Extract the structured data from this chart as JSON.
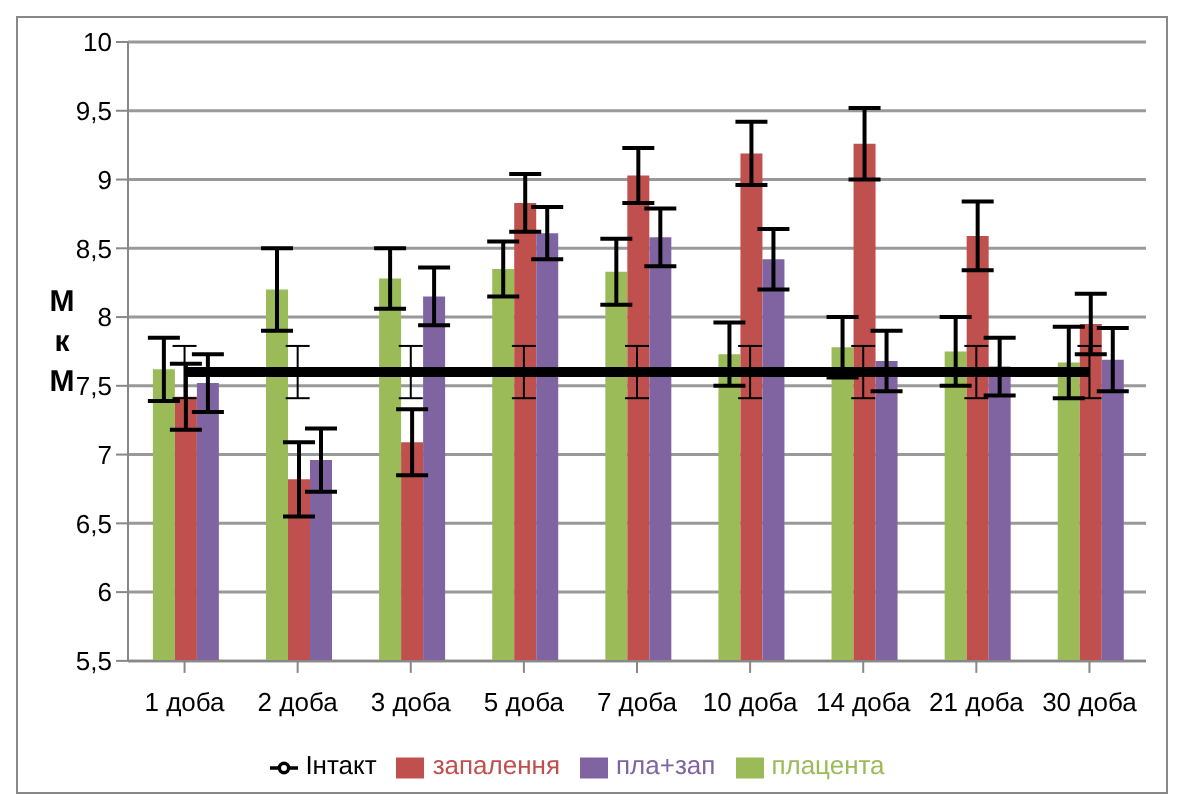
{
  "chart_data": {
    "type": "bar",
    "ylabel": "МкМ",
    "categories": [
      "1 доба",
      "2 доба",
      "3 доба",
      "5 доба",
      "7 доба",
      "10 доба",
      "14 доба",
      "21 доба",
      "30 доба"
    ],
    "series": [
      {
        "name": "плацента",
        "color": "#9bbb59",
        "values": [
          7.62,
          8.2,
          8.28,
          8.35,
          8.33,
          7.73,
          7.78,
          7.75,
          7.67
        ],
        "errors": [
          0.23,
          0.3,
          0.22,
          0.2,
          0.24,
          0.23,
          0.22,
          0.25,
          0.26
        ]
      },
      {
        "name": "запалення",
        "color": "#c0504d",
        "values": [
          7.42,
          6.82,
          7.09,
          8.83,
          9.03,
          9.19,
          9.26,
          8.59,
          7.95
        ],
        "errors": [
          0.24,
          0.27,
          0.24,
          0.21,
          0.2,
          0.23,
          0.26,
          0.25,
          0.22
        ]
      },
      {
        "name": "пла+зап",
        "color": "#8064a2",
        "values": [
          7.52,
          6.96,
          8.15,
          8.61,
          8.58,
          8.42,
          7.68,
          7.64,
          7.69
        ],
        "errors": [
          0.21,
          0.23,
          0.21,
          0.19,
          0.21,
          0.22,
          0.22,
          0.21,
          0.23
        ]
      },
      {
        "name": "Інтакт",
        "type": "line",
        "color": "#000000",
        "marker": "none",
        "values": [
          7.6,
          7.6,
          7.6,
          7.6,
          7.6,
          7.6,
          7.6,
          7.6,
          7.6
        ],
        "errors": [
          0.19,
          0.19,
          0.19,
          0.19,
          0.19,
          0.19,
          0.19,
          0.19,
          0.19
        ]
      }
    ],
    "ylim": [
      5.5,
      10
    ],
    "yticks": [
      {
        "value": 5.5,
        "label": "5,5"
      },
      6,
      {
        "value": 6.5,
        "label": "6,5"
      },
      7,
      {
        "value": 7.5,
        "label": "7,5"
      },
      8,
      {
        "value": 8.5,
        "label": "8,5"
      },
      9,
      {
        "value": 9.5,
        "label": "9,5"
      },
      10
    ],
    "grid": "y",
    "legend": "bottom"
  }
}
